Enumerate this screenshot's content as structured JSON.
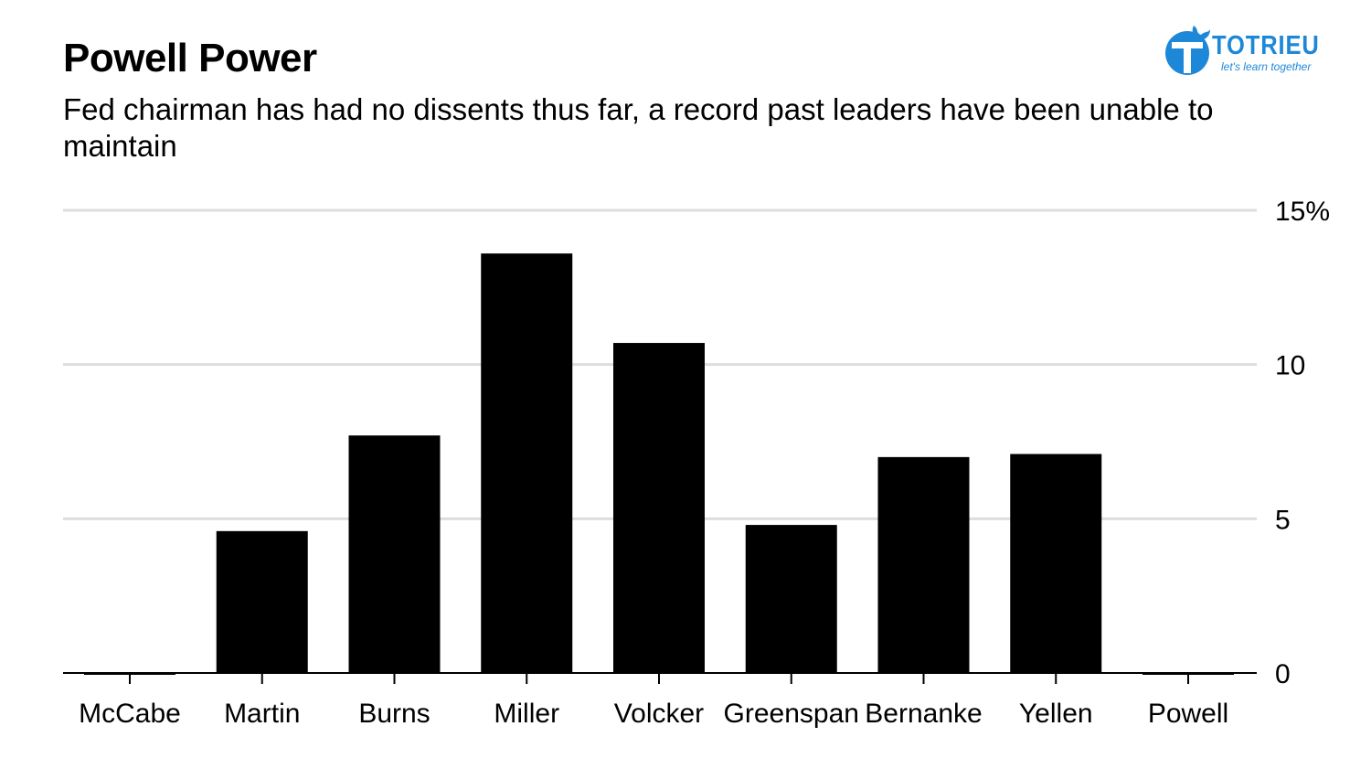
{
  "header": {
    "title": "Powell Power",
    "subtitle": "Fed chairman has had no dissents thus far, a record past leaders have been unable to maintain"
  },
  "logo": {
    "name": "TOTRIEU",
    "tagline": "let's learn together",
    "color": "#1e88d8"
  },
  "chart_data": {
    "type": "bar",
    "categories": [
      "McCabe",
      "Martin",
      "Burns",
      "Miller",
      "Volcker",
      "Greenspan",
      "Bernanke",
      "Yellen",
      "Powell"
    ],
    "values": [
      0,
      4.6,
      7.7,
      13.6,
      10.7,
      4.8,
      7.0,
      7.1,
      0
    ],
    "title": "Powell Power",
    "subtitle": "Fed chairman has had no dissents thus far, a record past leaders have been unable to maintain",
    "xlabel": "",
    "ylabel": "",
    "ylim": [
      0,
      15
    ],
    "yticks": [
      0,
      5,
      10,
      15
    ],
    "ytick_labels": [
      "0",
      "5",
      "10",
      "15%"
    ],
    "y_axis_side": "right",
    "grid": true,
    "bar_color": "#000000",
    "grid_color": "#dddddd"
  }
}
